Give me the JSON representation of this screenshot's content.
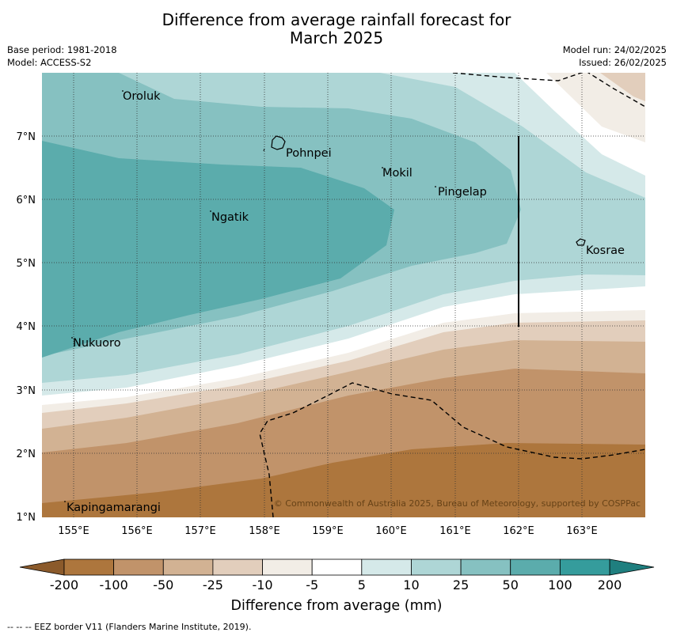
{
  "title_line1": "Difference from average rainfall forecast for",
  "title_line2": "March 2025",
  "base_period": "Base period: 1981-2018",
  "model": "Model: ACCESS-S2",
  "model_run": "Model run: 24/02/2025",
  "issued": "Issued: 26/02/2025",
  "map": {
    "lon_range": [
      154.5,
      164.0
    ],
    "lat_range": [
      1.0,
      8.0
    ],
    "lon_ticks": [
      "155°E",
      "156°E",
      "157°E",
      "158°E",
      "159°E",
      "160°E",
      "161°E",
      "162°E",
      "163°E"
    ],
    "lat_ticks": [
      "1°N",
      "2°N",
      "3°N",
      "4°N",
      "5°N",
      "6°N",
      "7°N"
    ],
    "places": [
      {
        "name": "Oroluk",
        "lon": 155.75,
        "lat": 7.6
      },
      {
        "name": "Pohnpei",
        "lon": 158.3,
        "lat": 6.9
      },
      {
        "name": "Mokil",
        "lon": 159.95,
        "lat": 6.4
      },
      {
        "name": "Pingelap",
        "lon": 160.8,
        "lat": 6.1
      },
      {
        "name": "Ngatik",
        "lon": 157.2,
        "lat": 5.75
      },
      {
        "name": "Kosrae",
        "lon": 163.0,
        "lat": 5.3
      },
      {
        "name": "Nukuoro",
        "lon": 155.0,
        "lat": 3.7
      },
      {
        "name": "Kapingamarangi",
        "lon": 154.9,
        "lat": 1.2
      }
    ],
    "copyright": "© Commonwealth of Australia 2025, Bureau of Meteorology, supported by COSPPac"
  },
  "colorbar": {
    "labels": [
      "-200",
      "-100",
      "-50",
      "-25",
      "-10",
      "-5",
      "5",
      "10",
      "25",
      "50",
      "100",
      "200"
    ],
    "colors": [
      "#ad763d",
      "#c1936a",
      "#d2b293",
      "#e2cebc",
      "#f2ede6",
      "#ffffff",
      "#d5e9e9",
      "#aed6d6",
      "#86c1c1",
      "#5bacac",
      "#359c9c"
    ],
    "under_color": "#8b5a2b",
    "over_color": "#1f7f7f",
    "title": "Difference from average (mm)"
  },
  "footer": "-- -- -- EEZ border V11 (Flanders Marine Institute, 2019)."
}
